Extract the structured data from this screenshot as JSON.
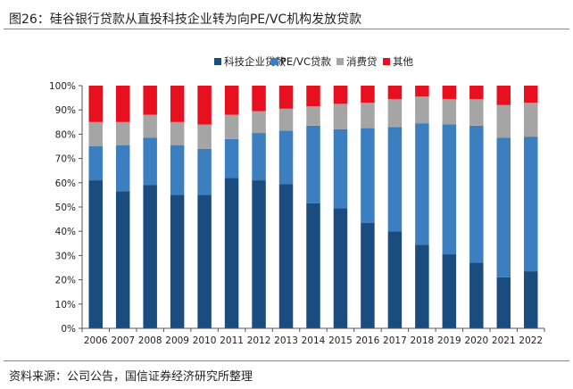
{
  "figure_title": "图26：硅谷银行贷款从直投科技企业转为向PE/VC机构发放贷款",
  "source": "资料来源：公司公告，国信证券经济研究所整理",
  "chart_data": {
    "type": "bar",
    "stacked": true,
    "normalized_percent": true,
    "categories": [
      "2006",
      "2007",
      "2008",
      "2009",
      "2010",
      "2011",
      "2012",
      "2013",
      "2014",
      "2015",
      "2016",
      "2017",
      "2018",
      "2019",
      "2020",
      "2021",
      "2022"
    ],
    "series": [
      {
        "name": "科技企业贷款",
        "color": "#1a4c80",
        "values": [
          61,
          56.5,
          59,
          55,
          55,
          62,
          61,
          59.5,
          51.5,
          49.5,
          43.5,
          40,
          34.5,
          30.5,
          27,
          21,
          23.5
        ]
      },
      {
        "name": "PE/VC贷款",
        "color": "#3c7fc1",
        "values": [
          14,
          19,
          19.5,
          20.5,
          19,
          16,
          19.5,
          22,
          32,
          32.5,
          39,
          43,
          50,
          53.5,
          56.5,
          57.5,
          55.5
        ]
      },
      {
        "name": "消费贷",
        "color": "#a5a5a5",
        "values": [
          10,
          9.5,
          9.5,
          9.5,
          10,
          10,
          9,
          9,
          8,
          10.5,
          10.5,
          11.5,
          11,
          10.5,
          11,
          13.5,
          14
        ]
      },
      {
        "name": "其他",
        "color": "#e8101f",
        "values": [
          15,
          15,
          12,
          15,
          16,
          12,
          10.5,
          9.5,
          8.5,
          7.5,
          7,
          5.5,
          4.5,
          5.5,
          5.5,
          8,
          7
        ]
      }
    ],
    "y_ticks": [
      "0%",
      "10%",
      "20%",
      "30%",
      "40%",
      "50%",
      "60%",
      "70%",
      "80%",
      "90%",
      "100%"
    ],
    "ylim": [
      0,
      100
    ],
    "legend_position": "top-center",
    "grid": false
  }
}
